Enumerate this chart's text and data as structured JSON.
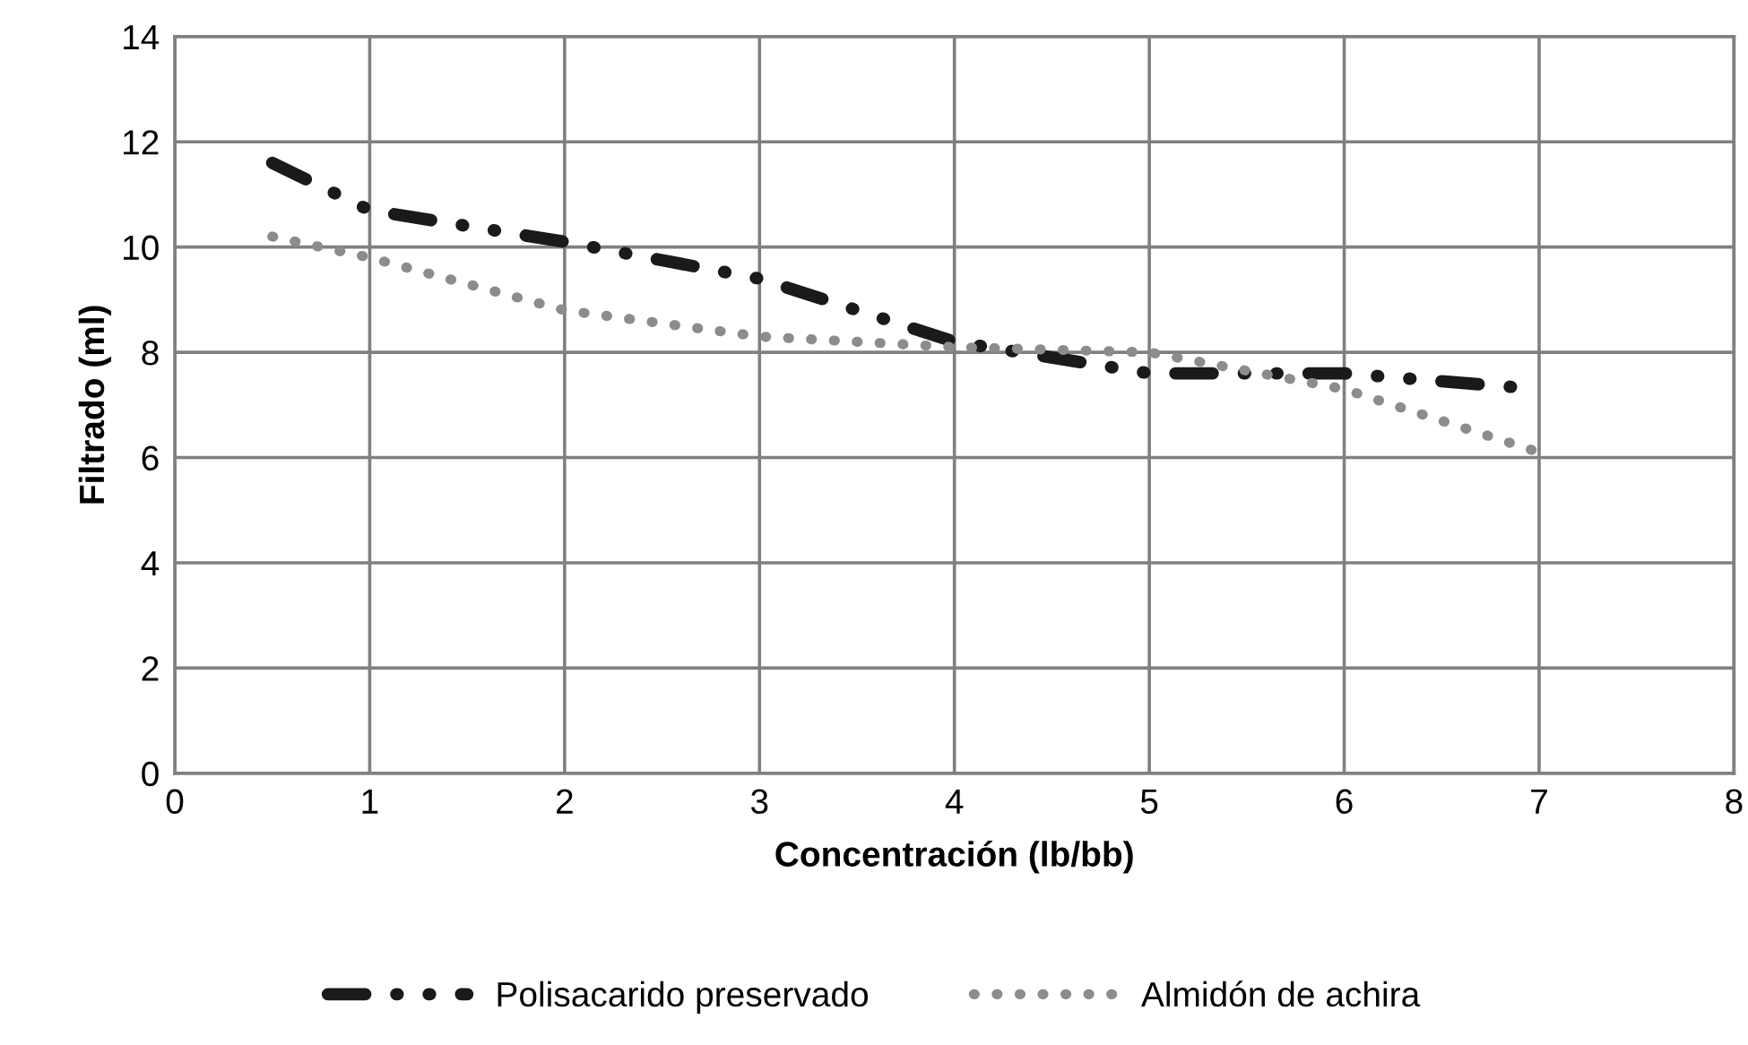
{
  "chart_data": {
    "type": "line",
    "xlabel": "Concentración (lb/bb)",
    "ylabel": "Filtrado (ml)",
    "x": [
      0.5,
      1,
      2,
      3,
      4,
      5,
      6,
      7
    ],
    "series": [
      {
        "name": "Polisacarido preservado",
        "color": "#1a1a1a",
        "line_style": "dashdot",
        "values": [
          11.6,
          10.7,
          10.1,
          9.4,
          8.2,
          7.6,
          7.6,
          7.3
        ]
      },
      {
        "name": "Almidón de achira",
        "color": "#8c8c8c",
        "line_style": "dotted",
        "values": [
          10.2,
          9.8,
          8.8,
          8.3,
          8.1,
          8.0,
          7.3,
          6.1
        ]
      }
    ],
    "xlim": [
      0,
      8
    ],
    "xticks": [
      0,
      1,
      2,
      3,
      4,
      5,
      6,
      7,
      8
    ],
    "ylim": [
      0,
      14
    ],
    "yticks": [
      0,
      2,
      4,
      6,
      8,
      10,
      12,
      14
    ],
    "grid": true,
    "legend": "bottom"
  }
}
